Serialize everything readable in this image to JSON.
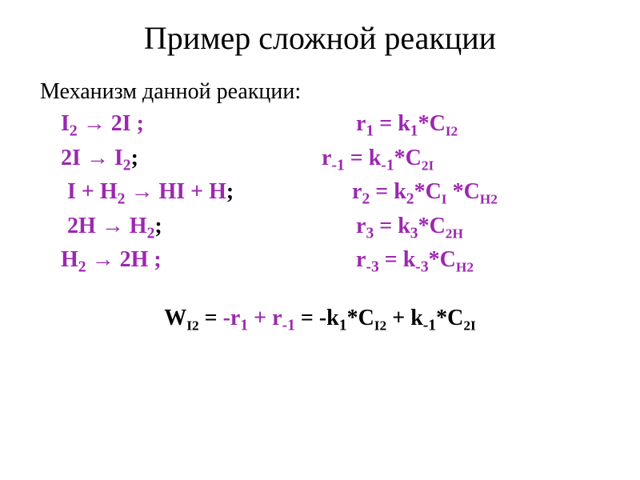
{
  "colors": {
    "background": "#ffffff",
    "text": "#000000",
    "accent": "#9c27b0"
  },
  "title": "Пример сложной реакции",
  "intro": "Механизм данной реакции:",
  "rows": [
    {
      "left_pre": "I",
      "left_sub1": "2",
      "left_mid": " → 2I ;",
      "r_label": "r",
      "r_sub": "1",
      "eq": " = k",
      "k_sub": "1",
      "tail": "*C",
      "tail_sub": "I2"
    },
    {
      "left_pre": "2I → I",
      "left_sub1": "2",
      "left_mid": ";",
      "r_label": "r",
      "r_sub": "-1",
      "eq": " = k",
      "k_sub": "-1",
      "tail": "*C",
      "tail_sub": "",
      "c2": "2",
      "c2_sub": "I"
    },
    {
      "left_pre": "I + H",
      "left_sub1": "2",
      "left_mid": " → HI + H",
      "semi": ";",
      "r_label": "r",
      "r_sub": "2",
      "eq": " = k",
      "k_sub": "2",
      "tail": "*C",
      "tail_sub": "I",
      "extra": " *C",
      "extra_sub": "H2"
    },
    {
      "left_pre": "2H → H",
      "left_sub1": "2",
      "left_mid": ";",
      "r_label": "r",
      "r_sub": "3",
      "eq": " = k",
      "k_sub": "3",
      "tail": "*C",
      "tail_sub": "",
      "c2": "2",
      "c2_sub": "H"
    },
    {
      "left_pre": "H",
      "left_sub1": "2",
      "left_mid": " → 2H ;",
      "r_label": "r",
      "r_sub": "-3",
      "eq": " = k",
      "k_sub": "-3",
      "tail": "*C",
      "tail_sub": "H2"
    }
  ],
  "footer": {
    "w": "W",
    "w_sub": "I2",
    "eq": " = ",
    "r1": "-r",
    "r1_sub": "1",
    "plus": "  + ",
    "r2": "r",
    "r2_sub": "-1",
    "eq2": " = -k",
    "k1_sub": "1",
    "c1": "*C",
    "c1_sub": "I2",
    "plus2": "  + k",
    "k2_sub": "-1",
    "c2": "*C",
    "c2_num": "2",
    "c2_sub": "I"
  }
}
